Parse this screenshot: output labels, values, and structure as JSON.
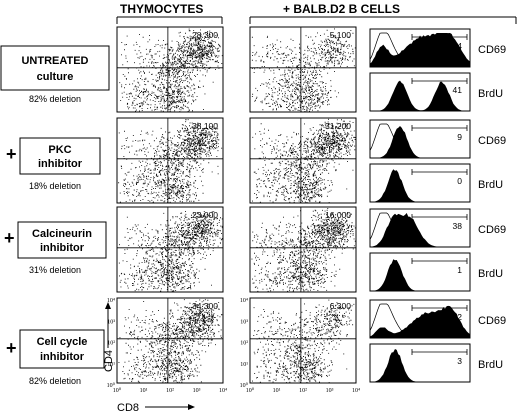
{
  "headers": {
    "left": "THYMOCYTES",
    "right": "+ BALB.D2  B CELLS"
  },
  "rows": [
    {
      "plus": "",
      "line1": "UNTREATED",
      "line2": "culture",
      "deletion": "82% deletion",
      "thymocyte_value": "28.300",
      "bcell_value": "5.100",
      "cd69_value": "84",
      "brdu_value": "41"
    },
    {
      "plus": "+",
      "line1": "PKC",
      "line2": "inhibitor",
      "deletion": "18% deletion",
      "thymocyte_value": "38.100",
      "bcell_value": "31.200",
      "cd69_value": "9",
      "brdu_value": "0"
    },
    {
      "plus": "+",
      "line1": "Calcineurin",
      "line2": "inhibitor",
      "deletion": "31% deletion",
      "thymocyte_value": "23.000",
      "bcell_value": "16.000",
      "cd69_value": "38",
      "brdu_value": "1"
    },
    {
      "plus": "+",
      "line1": "Cell cycle",
      "line2": "inhibitor",
      "deletion": "82% deletion",
      "thymocyte_value": "34.300",
      "bcell_value": "6.300",
      "cd69_value": "72",
      "brdu_value": "3"
    }
  ],
  "markers": {
    "cd69": "CD69",
    "brdu": "BrdU"
  },
  "axes": {
    "y": "CD4",
    "x": "CD8"
  },
  "ticks": {
    "y": [
      "10⁴",
      "10³",
      "10²",
      "10¹",
      "10⁰"
    ],
    "x": [
      "10⁰",
      "10¹",
      "10²",
      "10³",
      "10⁴"
    ]
  }
}
